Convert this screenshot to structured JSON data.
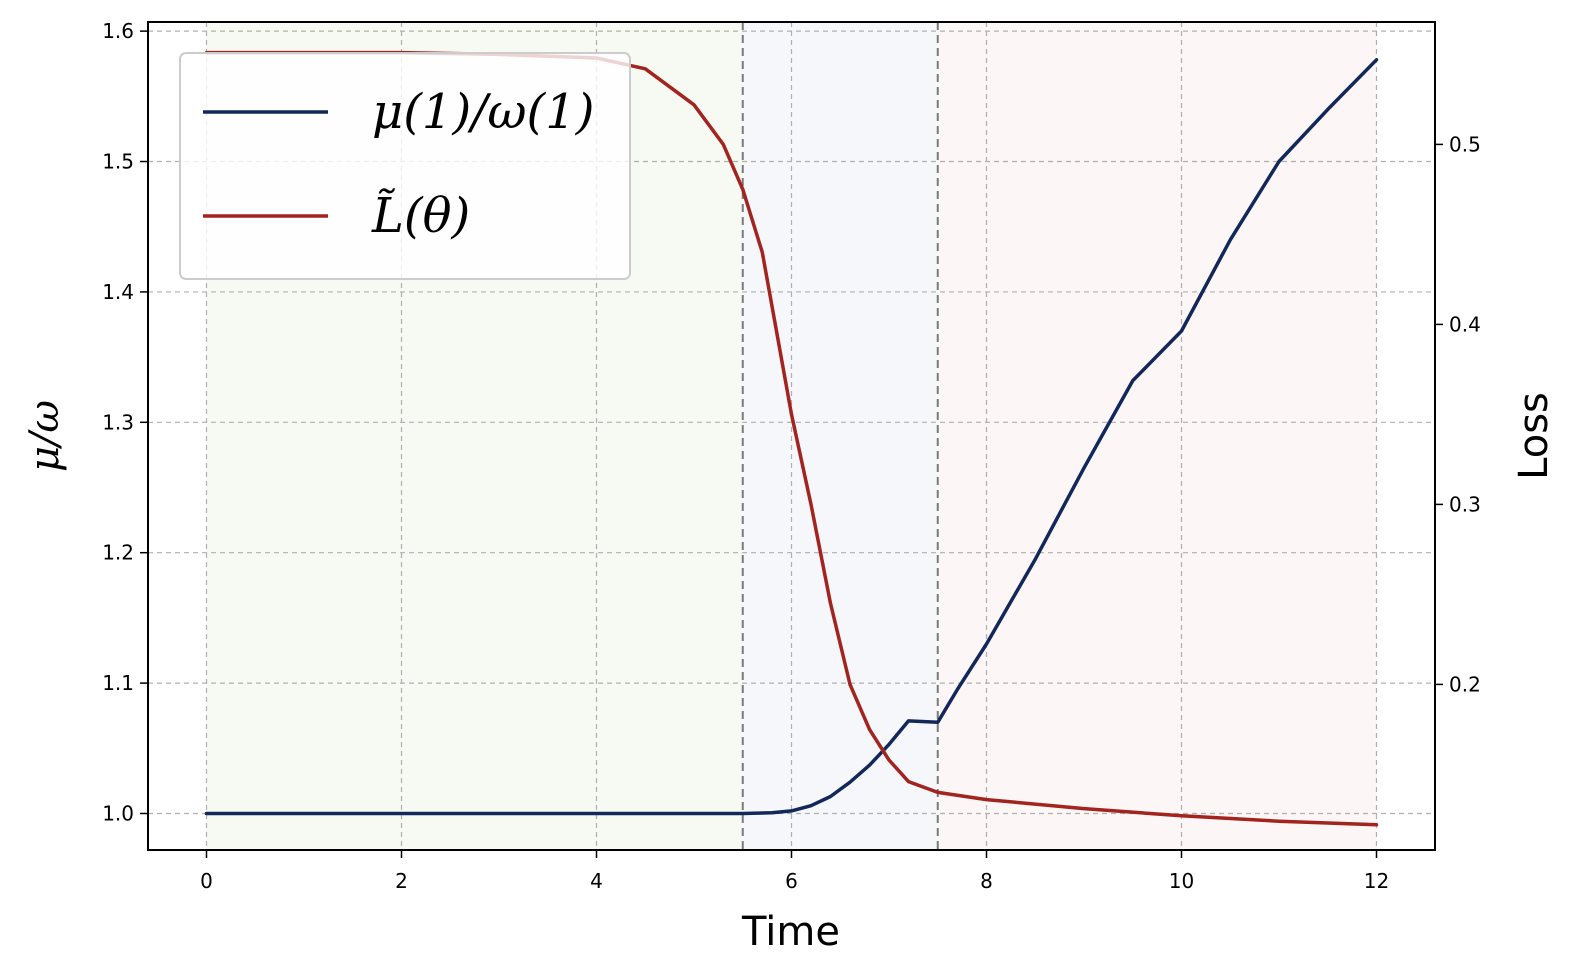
{
  "chart_data": {
    "type": "line",
    "xlabel": "Time",
    "ylabel_left": "μ/ω",
    "ylabel_right": "Loss",
    "xlim": [
      -0.6,
      12.6
    ],
    "ylim_left": [
      0.972,
      1.607
    ],
    "ylim_right": [
      0.108,
      0.568
    ],
    "x_ticks": [
      "0",
      "2",
      "4",
      "6",
      "8",
      "10",
      "12"
    ],
    "x_tick_values": [
      0,
      2,
      4,
      6,
      8,
      10,
      12
    ],
    "y_ticks_left": [
      "1.0",
      "1.1",
      "1.2",
      "1.3",
      "1.4",
      "1.5",
      "1.6"
    ],
    "y_tick_values_left": [
      1.0,
      1.1,
      1.2,
      1.3,
      1.4,
      1.5,
      1.6
    ],
    "y_ticks_right": [
      "0.2",
      "0.3",
      "0.4",
      "0.5"
    ],
    "y_tick_values_right": [
      0.2,
      0.3,
      0.4,
      0.5
    ],
    "grid": true,
    "legend_placement": "upper-left",
    "phase_regions": [
      {
        "x": [
          0,
          5.5
        ],
        "color": "#f6faf2"
      },
      {
        "x": [
          5.5,
          7.5
        ],
        "color": "#f6f7fa"
      },
      {
        "x": [
          7.5,
          12
        ],
        "color": "#fcf6f6"
      }
    ],
    "vlines": [
      5.5,
      7.5
    ],
    "series": [
      {
        "name": "μ(1)/ω(1)",
        "axis": "left",
        "color": "#13285a",
        "points": [
          [
            0,
            1.0
          ],
          [
            1,
            1.0
          ],
          [
            2,
            1.0
          ],
          [
            3,
            1.0
          ],
          [
            4,
            1.0
          ],
          [
            5,
            1.0
          ],
          [
            5.5,
            1.0
          ],
          [
            5.8,
            1.0005
          ],
          [
            6.0,
            1.002
          ],
          [
            6.2,
            1.006
          ],
          [
            6.4,
            1.013
          ],
          [
            6.6,
            1.024
          ],
          [
            6.8,
            1.037
          ],
          [
            7.0,
            1.053
          ],
          [
            7.2,
            1.071
          ],
          [
            7.5,
            1.07
          ],
          [
            7.7,
            1.095
          ],
          [
            8.0,
            1.13
          ],
          [
            8.5,
            1.195
          ],
          [
            9.0,
            1.265
          ],
          [
            9.5,
            1.332
          ],
          [
            10.0,
            1.37
          ],
          [
            10.5,
            1.44
          ],
          [
            11.0,
            1.5
          ],
          [
            11.5,
            1.54
          ],
          [
            12.0,
            1.578
          ]
        ]
      },
      {
        "name": "L̃(θ)",
        "axis": "right",
        "color": "#a3231e",
        "points": [
          [
            0,
            0.551
          ],
          [
            1,
            0.551
          ],
          [
            2,
            0.551
          ],
          [
            3,
            0.55
          ],
          [
            4,
            0.548
          ],
          [
            4.5,
            0.542
          ],
          [
            5.0,
            0.522
          ],
          [
            5.3,
            0.5
          ],
          [
            5.5,
            0.475
          ],
          [
            5.7,
            0.44
          ],
          [
            6.0,
            0.35
          ],
          [
            6.2,
            0.3
          ],
          [
            6.4,
            0.245
          ],
          [
            6.6,
            0.2
          ],
          [
            6.8,
            0.175
          ],
          [
            7.0,
            0.158
          ],
          [
            7.2,
            0.146
          ],
          [
            7.5,
            0.14
          ],
          [
            8.0,
            0.136
          ],
          [
            9.0,
            0.131
          ],
          [
            10.0,
            0.127
          ],
          [
            11.0,
            0.124
          ],
          [
            12.0,
            0.122
          ]
        ]
      }
    ]
  }
}
